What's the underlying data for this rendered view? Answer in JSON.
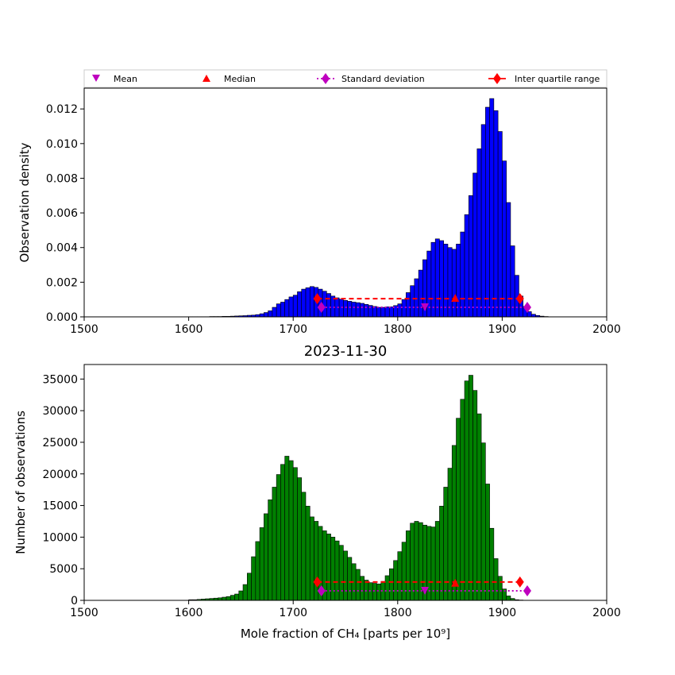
{
  "legend": {
    "placement": "top, above upper panel",
    "items": [
      {
        "label": "Mean",
        "marker": "triangle-down",
        "color": "#bf00bf"
      },
      {
        "label": "Median",
        "marker": "triangle-up",
        "color": "#ff0000"
      },
      {
        "label": "Standard deviation",
        "marker": "diamond",
        "line": "dotted",
        "color": "#bf00bf"
      },
      {
        "label": "Inter quartile range",
        "marker": "diamond",
        "line": "solid",
        "color": "#ff0000"
      }
    ]
  },
  "colors": {
    "density_bars": "#0000ff",
    "count_bars": "#008000",
    "mean": "#bf00bf",
    "median": "#ff0000",
    "std": "#bf00bf",
    "iqr": "#ff0000"
  },
  "chart_data": [
    {
      "type": "bar",
      "panel": "top",
      "title": "",
      "xlabel": "",
      "ylabel": "Observation density",
      "xlim": [
        1500,
        2000
      ],
      "ylim": [
        0,
        0.0132
      ],
      "xticks": [
        1500,
        1600,
        1700,
        1800,
        1900,
        2000
      ],
      "yticks": [
        0.0,
        0.002,
        0.004,
        0.006,
        0.008,
        0.01,
        0.012
      ],
      "ytick_labels": [
        "0.000",
        "0.002",
        "0.004",
        "0.006",
        "0.008",
        "0.010",
        "0.012"
      ],
      "grid": false,
      "bin_start": 1600,
      "bin_width": 4,
      "values": [
        1e-05,
        1e-05,
        1e-05,
        1e-05,
        1e-05,
        2e-05,
        2e-05,
        2e-05,
        3e-05,
        3e-05,
        4e-05,
        5e-05,
        6e-05,
        7e-05,
        9e-05,
        0.0001,
        0.00013,
        0.00018,
        0.00025,
        0.00035,
        0.00055,
        0.00075,
        0.00085,
        0.001,
        0.00115,
        0.00125,
        0.00145,
        0.0016,
        0.00168,
        0.00175,
        0.0017,
        0.0016,
        0.00148,
        0.00135,
        0.0012,
        0.0011,
        0.00102,
        0.00095,
        0.0009,
        0.00085,
        0.00082,
        0.00078,
        0.00072,
        0.00066,
        0.0006,
        0.00055,
        0.00055,
        0.00058,
        0.00058,
        0.00065,
        0.00075,
        0.001,
        0.0014,
        0.0018,
        0.0022,
        0.0027,
        0.0033,
        0.0038,
        0.0043,
        0.0045,
        0.0044,
        0.0042,
        0.004,
        0.0039,
        0.0042,
        0.0049,
        0.0059,
        0.007,
        0.0083,
        0.0097,
        0.0111,
        0.0121,
        0.0126,
        0.0119,
        0.0107,
        0.009,
        0.0066,
        0.0041,
        0.0024,
        0.0012,
        0.0006,
        0.0003,
        0.00015,
        8e-05,
        4e-05,
        2e-05
      ],
      "statistics": {
        "mean": {
          "x": 1826,
          "y": 0.00055
        },
        "median": {
          "x": 1855,
          "y": 0.0011
        },
        "std": {
          "x_low": 1727,
          "x_high": 1924,
          "y": 0.00055
        },
        "iqr": {
          "x_low": 1723,
          "x_high": 1917,
          "y": 0.00105
        }
      }
    },
    {
      "type": "bar",
      "panel": "bottom",
      "title": "2023-11-30",
      "xlabel": "Mole fraction of CH₄ [parts per 10⁹]",
      "ylabel": "Number of observations",
      "xlim": [
        1500,
        2000
      ],
      "ylim": [
        0,
        37300
      ],
      "xticks": [
        1500,
        1600,
        1700,
        1800,
        1900,
        2000
      ],
      "yticks": [
        0,
        5000,
        10000,
        15000,
        20000,
        25000,
        30000,
        35000
      ],
      "ytick_labels": [
        "0",
        "5000",
        "10000",
        "15000",
        "20000",
        "25000",
        "30000",
        "35000"
      ],
      "grid": false,
      "bin_start": 1600,
      "bin_width": 4,
      "values": [
        100,
        100,
        150,
        200,
        250,
        300,
        350,
        400,
        500,
        600,
        800,
        1000,
        1500,
        2500,
        4300,
        6900,
        9300,
        11500,
        13700,
        15900,
        17900,
        19900,
        21500,
        22800,
        22100,
        21000,
        19400,
        17100,
        14900,
        13200,
        12500,
        11700,
        11000,
        10500,
        10000,
        9400,
        8700,
        7800,
        6800,
        5800,
        4900,
        3800,
        3200,
        2800,
        2700,
        2600,
        3000,
        3900,
        5000,
        6300,
        7700,
        9200,
        11000,
        12200,
        12500,
        12300,
        11900,
        11700,
        11600,
        12500,
        14900,
        17900,
        20900,
        24500,
        28800,
        31800,
        34700,
        35600,
        33200,
        29500,
        24900,
        18400,
        11400,
        6600,
        3800,
        1800,
        700,
        300,
        100,
        50,
        20,
        10,
        5,
        2,
        1,
        0
      ],
      "statistics": {
        "mean": {
          "x": 1826,
          "y": 1500
        },
        "median": {
          "x": 1855,
          "y": 2800
        },
        "std": {
          "x_low": 1727,
          "x_high": 1924,
          "y": 1500
        },
        "iqr": {
          "x_low": 1723,
          "x_high": 1917,
          "y": 2900
        }
      }
    }
  ]
}
